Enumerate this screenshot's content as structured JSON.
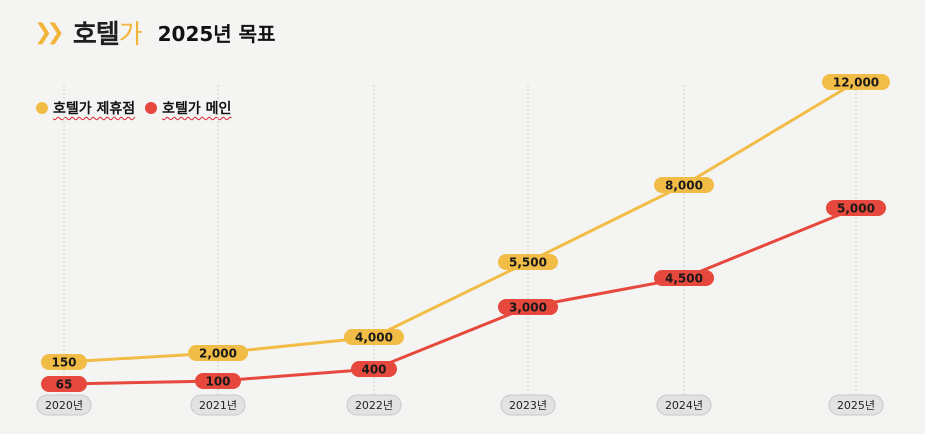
{
  "header": {
    "logo_main": "호텔",
    "logo_accent": "가",
    "title": "2025년 목표"
  },
  "legend": [
    {
      "label": "호텔가 제휴점",
      "color": "#f2bd46"
    },
    {
      "label": "호텔가 메인",
      "color": "#e6483d"
    }
  ],
  "chart_data": {
    "type": "line",
    "categories": [
      "2020년",
      "2021년",
      "2022년",
      "2023년",
      "2024년",
      "2025년"
    ],
    "series": [
      {
        "name": "호텔가 제휴점",
        "color": "#f2bd46",
        "label_text_color": "#1a1a1a",
        "values": [
          150,
          2000,
          4000,
          5500,
          8000,
          12000
        ],
        "labels": [
          "150",
          "2,000",
          "4,000",
          "5,500",
          "8,000",
          "12,000"
        ]
      },
      {
        "name": "호텔가 메인",
        "color": "#e6483d",
        "label_text_color": "#1a1a1a",
        "values": [
          65,
          100,
          400,
          3000,
          4500,
          5000
        ],
        "labels": [
          "65",
          "100",
          "400",
          "3,000",
          "4,500",
          "5,000"
        ]
      }
    ],
    "axis_pill_color": "#e2e2e2",
    "grid": "vertical dashed lines"
  }
}
